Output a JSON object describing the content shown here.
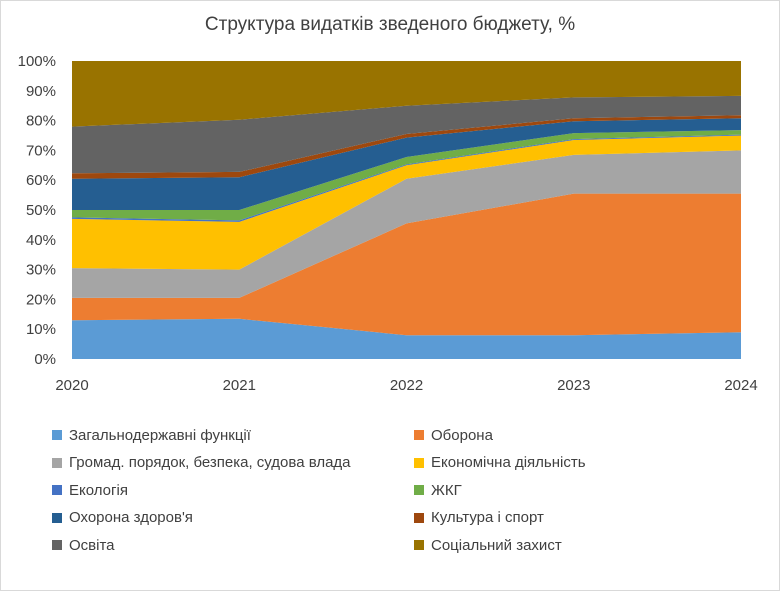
{
  "chart_data": {
    "type": "area",
    "stacked": true,
    "percent": true,
    "title": "Структура видатків зведеного бюджету, %",
    "xlabel": "",
    "ylabel": "",
    "x": [
      "2020",
      "2021",
      "2022",
      "2023",
      "2024"
    ],
    "ylim": [
      0,
      100
    ],
    "y_ticks": [
      "0%",
      "10%",
      "20%",
      "30%",
      "40%",
      "50%",
      "60%",
      "70%",
      "80%",
      "90%",
      "100%"
    ],
    "grid": false,
    "legend_position": "bottom",
    "series": [
      {
        "name": "Загальнодержавні функції",
        "color": "#5b9bd5",
        "values": [
          13.0,
          13.5,
          8.0,
          8.0,
          9.0
        ]
      },
      {
        "name": "Оборона",
        "color": "#ed7d31",
        "values": [
          7.5,
          7.0,
          37.5,
          47.5,
          46.5
        ]
      },
      {
        "name": "Громад. порядок, безпека, судова влада",
        "color": "#a5a5a5",
        "values": [
          10.0,
          9.5,
          15.0,
          13.0,
          14.5
        ]
      },
      {
        "name": "Економічна діяльність",
        "color": "#ffc000",
        "values": [
          16.5,
          16.0,
          4.5,
          5.0,
          5.0
        ]
      },
      {
        "name": "Екологія",
        "color": "#4472c4",
        "values": [
          0.5,
          0.5,
          0.3,
          0.3,
          0.3
        ]
      },
      {
        "name": "ЖКГ",
        "color": "#70ad47",
        "values": [
          2.5,
          3.5,
          2.5,
          2.0,
          1.5
        ]
      },
      {
        "name": "Охорона здоров'я",
        "color": "#255e91",
        "values": [
          10.5,
          11.0,
          6.5,
          4.0,
          4.0
        ]
      },
      {
        "name": "Культура і спорт",
        "color": "#9e480e",
        "values": [
          1.8,
          1.8,
          1.2,
          1.0,
          1.0
        ]
      },
      {
        "name": "Освіта",
        "color": "#636363",
        "values": [
          15.7,
          17.5,
          9.5,
          7.0,
          6.5
        ]
      },
      {
        "name": "Соціальний захист",
        "color": "#997300",
        "values": [
          22.0,
          19.7,
          15.0,
          12.2,
          11.7
        ]
      }
    ]
  }
}
